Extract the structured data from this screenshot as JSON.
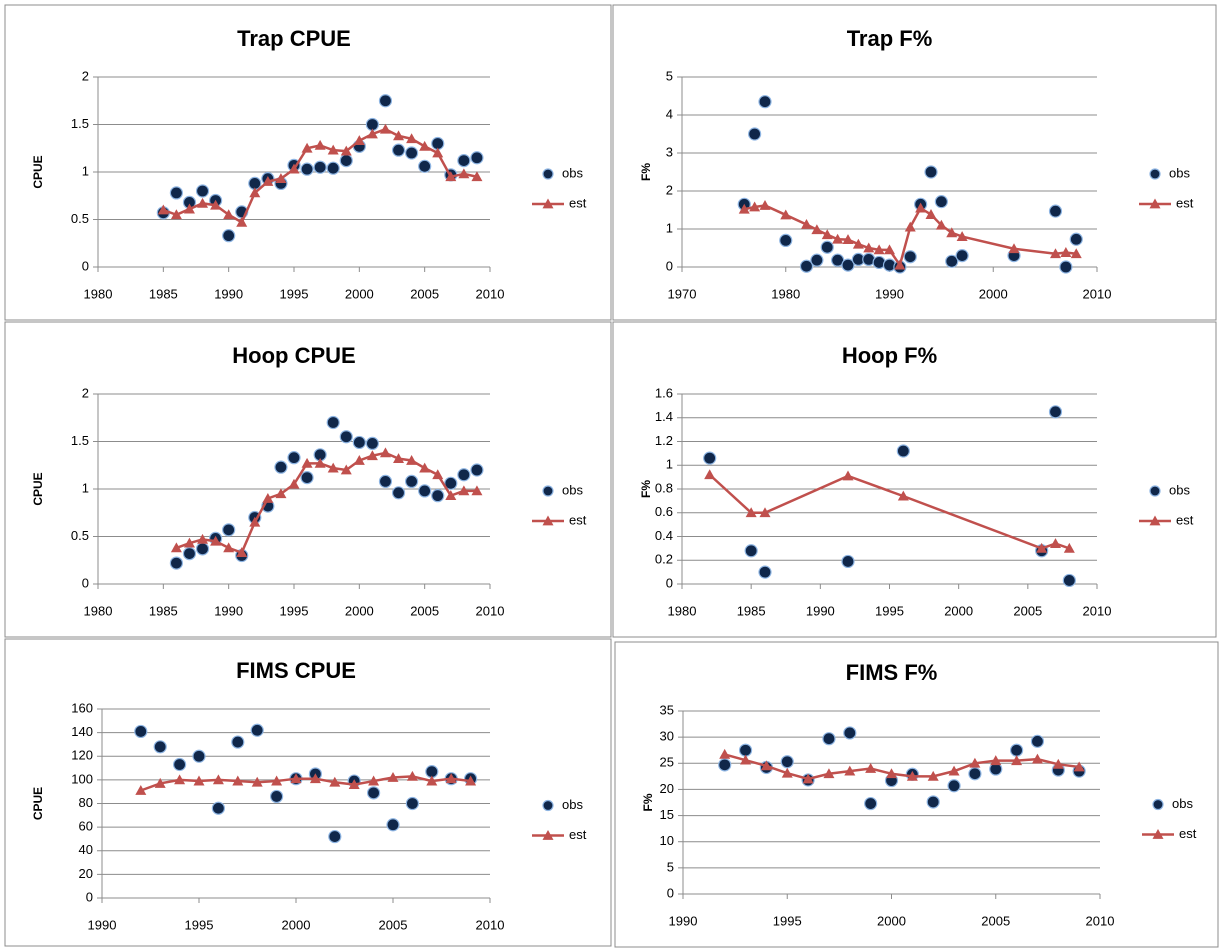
{
  "chart_data": [
    {
      "type": "line",
      "title": "Trap CPUE",
      "y_label": "CPUE",
      "x": [
        1985,
        1986,
        1987,
        1988,
        1989,
        1990,
        1991,
        1992,
        1993,
        1994,
        1995,
        1996,
        1997,
        1998,
        1999,
        2000,
        2001,
        2002,
        2003,
        2004,
        2005,
        2006,
        2007,
        2008,
        2009
      ],
      "series": [
        {
          "name": "obs",
          "color": "#10274a",
          "marker": "circle",
          "line": false,
          "values": [
            0.57,
            0.78,
            0.68,
            0.8,
            0.7,
            0.33,
            0.58,
            0.88,
            0.93,
            0.88,
            1.07,
            1.03,
            1.05,
            1.04,
            1.12,
            1.27,
            1.5,
            1.75,
            1.23,
            1.2,
            1.06,
            1.3,
            0.97,
            1.12,
            1.15
          ]
        },
        {
          "name": "est",
          "color": "#c0504d",
          "marker": "triangle",
          "line": true,
          "values": [
            0.6,
            0.55,
            0.61,
            0.67,
            0.65,
            0.55,
            0.47,
            0.78,
            0.9,
            0.93,
            1.03,
            1.25,
            1.28,
            1.23,
            1.22,
            1.33,
            1.4,
            1.45,
            1.38,
            1.35,
            1.27,
            1.2,
            0.95,
            0.98,
            0.95
          ]
        }
      ],
      "xlim": [
        1980,
        2010
      ],
      "xticks": [
        1980,
        1985,
        1990,
        1995,
        2000,
        2005,
        2010
      ],
      "ylim": [
        0,
        2
      ],
      "yticks": [
        0,
        0.5,
        1,
        1.5,
        2
      ],
      "grid": true
    },
    {
      "type": "line",
      "title": "Trap F%",
      "y_label": "F%",
      "x": [
        1976,
        1977,
        1978,
        1980,
        1982,
        1983,
        1984,
        1985,
        1986,
        1987,
        1988,
        1989,
        1990,
        1991,
        1992,
        1993,
        1994,
        1995,
        1996,
        1997,
        2002,
        2006,
        2007,
        2008
      ],
      "series": [
        {
          "name": "obs",
          "color": "#10274a",
          "marker": "circle",
          "line": false,
          "values": [
            1.65,
            3.5,
            4.35,
            0.7,
            0.02,
            0.18,
            0.52,
            0.18,
            0.05,
            0.2,
            0.2,
            0.12,
            0.05,
            0.0,
            0.27,
            1.65,
            2.5,
            1.72,
            0.15,
            0.3,
            0.3,
            1.47,
            0.0,
            0.73
          ]
        },
        {
          "name": "est",
          "color": "#c0504d",
          "marker": "triangle",
          "line": true,
          "values": [
            1.52,
            1.58,
            1.62,
            1.37,
            1.12,
            0.98,
            0.85,
            0.73,
            0.72,
            0.6,
            0.5,
            0.45,
            0.45,
            0.05,
            1.05,
            1.55,
            1.38,
            1.1,
            0.9,
            0.8,
            0.48,
            0.35,
            0.38,
            0.35
          ]
        }
      ],
      "xlim": [
        1970,
        2010
      ],
      "xticks": [
        1970,
        1980,
        1990,
        2000,
        2010
      ],
      "ylim": [
        0,
        5
      ],
      "yticks": [
        0,
        1,
        2,
        3,
        4,
        5
      ],
      "grid": true
    },
    {
      "type": "line",
      "title": "Hoop CPUE",
      "y_label": "CPUE",
      "x": [
        1986,
        1987,
        1988,
        1989,
        1990,
        1991,
        1992,
        1993,
        1994,
        1995,
        1996,
        1997,
        1998,
        1999,
        2000,
        2001,
        2002,
        2003,
        2004,
        2005,
        2006,
        2007,
        2008,
        2009
      ],
      "series": [
        {
          "name": "obs",
          "color": "#10274a",
          "marker": "circle",
          "line": false,
          "values": [
            0.22,
            0.32,
            0.37,
            0.48,
            0.57,
            0.3,
            0.7,
            0.82,
            1.23,
            1.33,
            1.12,
            1.36,
            1.7,
            1.55,
            1.49,
            1.48,
            1.08,
            0.96,
            1.08,
            0.98,
            0.93,
            1.06,
            1.15,
            1.2
          ]
        },
        {
          "name": "est",
          "color": "#c0504d",
          "marker": "triangle",
          "line": true,
          "values": [
            0.38,
            0.43,
            0.47,
            0.45,
            0.38,
            0.33,
            0.65,
            0.9,
            0.95,
            1.05,
            1.27,
            1.27,
            1.22,
            1.2,
            1.3,
            1.35,
            1.38,
            1.32,
            1.3,
            1.22,
            1.15,
            0.93,
            0.98,
            0.98
          ]
        }
      ],
      "xlim": [
        1980,
        2010
      ],
      "xticks": [
        1980,
        1985,
        1990,
        1995,
        2000,
        2005,
        2010
      ],
      "ylim": [
        0,
        2
      ],
      "yticks": [
        0,
        0.5,
        1,
        1.5,
        2
      ],
      "grid": true
    },
    {
      "type": "line",
      "title": "Hoop F%",
      "y_label": "F%",
      "x": [
        1982,
        1985,
        1986,
        1992,
        1996,
        2006,
        2007,
        2008
      ],
      "series": [
        {
          "name": "obs",
          "color": "#10274a",
          "marker": "circle",
          "line": false,
          "values": [
            1.06,
            0.28,
            0.1,
            0.19,
            1.12,
            0.28,
            1.45,
            0.03
          ]
        },
        {
          "name": "est",
          "color": "#c0504d",
          "marker": "triangle",
          "line": true,
          "values": [
            0.92,
            0.6,
            0.6,
            0.91,
            0.74,
            0.3,
            0.34,
            0.3
          ]
        }
      ],
      "xlim": [
        1980,
        2010
      ],
      "xticks": [
        1980,
        1985,
        1990,
        1995,
        2000,
        2005,
        2010
      ],
      "ylim": [
        0,
        1.6
      ],
      "yticks": [
        0,
        0.2,
        0.4,
        0.6,
        0.8,
        1,
        1.2,
        1.4,
        1.6
      ],
      "grid": true
    },
    {
      "type": "line",
      "title": "FIMS CPUE",
      "y_label": "CPUE",
      "x": [
        1992,
        1993,
        1994,
        1995,
        1996,
        1997,
        1998,
        1999,
        2000,
        2001,
        2002,
        2003,
        2004,
        2005,
        2006,
        2007,
        2008,
        2009
      ],
      "series": [
        {
          "name": "obs",
          "color": "#10274a",
          "marker": "circle",
          "line": false,
          "values": [
            141,
            128,
            113,
            120,
            76,
            132,
            142,
            86,
            101,
            105,
            52,
            99,
            89,
            62,
            80,
            107,
            101,
            101
          ]
        },
        {
          "name": "est",
          "color": "#c0504d",
          "marker": "triangle",
          "line": true,
          "values": [
            91,
            97,
            100,
            99,
            100,
            99,
            98,
            99,
            101,
            101,
            98,
            96,
            99,
            102,
            103,
            99,
            101,
            99
          ]
        }
      ],
      "xlim": [
        1990,
        2010
      ],
      "xticks": [
        1990,
        1995,
        2000,
        2005,
        2010
      ],
      "ylim": [
        0,
        160
      ],
      "yticks": [
        0,
        20,
        40,
        60,
        80,
        100,
        120,
        140,
        160
      ],
      "grid": true
    },
    {
      "type": "line",
      "title": "FIMS F%",
      "y_label": "F%",
      "x": [
        1992,
        1993,
        1994,
        1995,
        1996,
        1997,
        1998,
        1999,
        2000,
        2001,
        2002,
        2003,
        2004,
        2005,
        2006,
        2007,
        2008,
        2009
      ],
      "series": [
        {
          "name": "obs",
          "color": "#10274a",
          "marker": "circle",
          "line": false,
          "values": [
            24.7,
            27.5,
            24.2,
            25.3,
            21.8,
            29.7,
            30.8,
            17.3,
            21.7,
            22.9,
            17.6,
            20.7,
            23.0,
            23.9,
            27.5,
            29.2,
            23.7,
            23.5
          ]
        },
        {
          "name": "est",
          "color": "#c0504d",
          "marker": "triangle",
          "line": true,
          "values": [
            26.7,
            25.6,
            24.5,
            23.1,
            22.0,
            23.0,
            23.5,
            24.0,
            23.0,
            22.5,
            22.5,
            23.5,
            25.0,
            25.5,
            25.5,
            25.8,
            24.8,
            24.3
          ]
        }
      ],
      "xlim": [
        1990,
        2010
      ],
      "xticks": [
        1990,
        1995,
        2000,
        2005,
        2010
      ],
      "ylim": [
        0,
        35
      ],
      "yticks": [
        0,
        5,
        10,
        15,
        20,
        25,
        30,
        35
      ],
      "grid": true
    }
  ]
}
